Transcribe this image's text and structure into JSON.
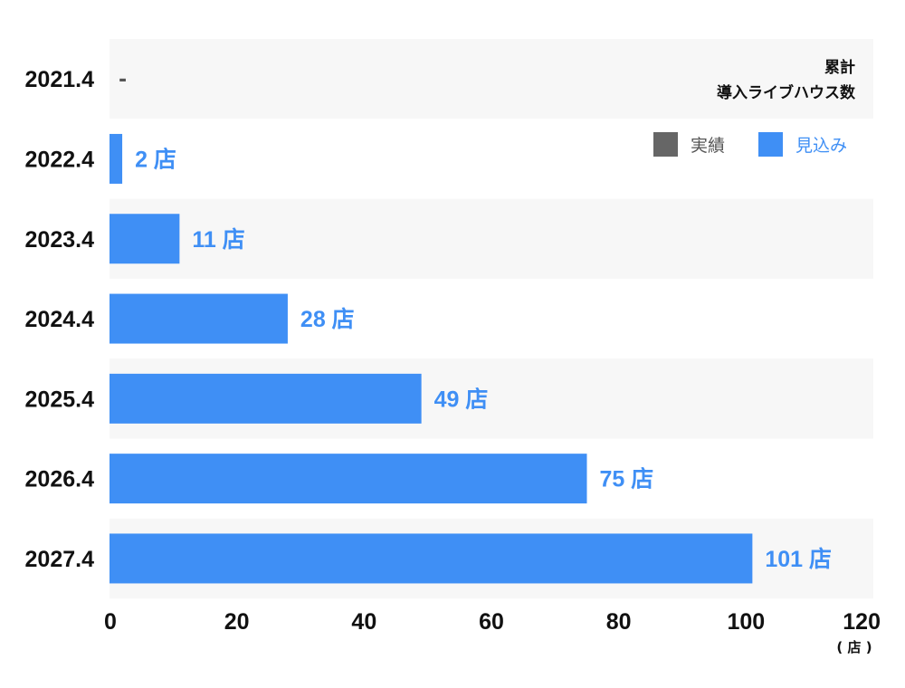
{
  "chart_data": {
    "type": "bar",
    "orientation": "horizontal",
    "title_lines": [
      "累計",
      "導入ライブハウス数"
    ],
    "categories": [
      "2021.4",
      "2022.4",
      "2023.4",
      "2024.4",
      "2025.4",
      "2026.4",
      "2027.4"
    ],
    "values": [
      0,
      2,
      11,
      28,
      49,
      75,
      101
    ],
    "value_labels": [
      "-",
      "2 店",
      "11 店",
      "28 店",
      "49 店",
      "75 店",
      "101 店"
    ],
    "bar_series": [
      "forecast",
      "forecast",
      "forecast",
      "forecast",
      "forecast",
      "forecast",
      "forecast"
    ],
    "legend": [
      {
        "key": "actual",
        "label": "実績",
        "color": "#666666"
      },
      {
        "key": "forecast",
        "label": "見込み",
        "color": "#3f8ff5"
      }
    ],
    "legend_position": "top-right",
    "xlim": [
      0,
      120
    ],
    "x_ticks": [
      0,
      20,
      40,
      60,
      80,
      100,
      120
    ],
    "x_unit": "( 店 )",
    "row_stripe_colors": [
      "#f7f7f7",
      "#ffffff"
    ],
    "label_color": "#3f8ff5",
    "dash_color": "#555555"
  }
}
